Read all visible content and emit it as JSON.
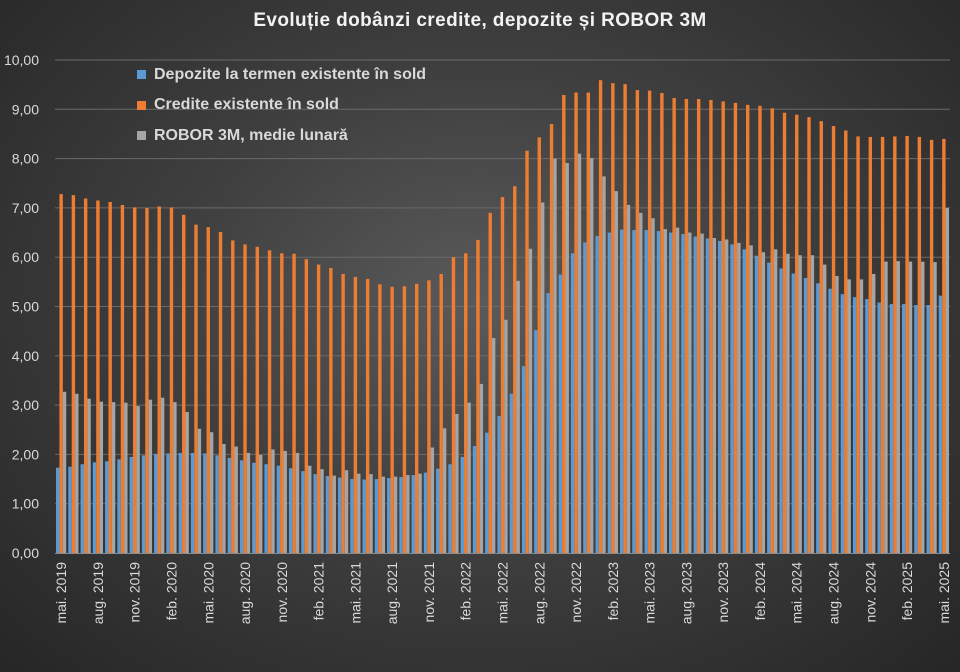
{
  "chart_data": {
    "type": "bar",
    "title": "Evoluție dobânzi credite, depozite și ROBOR 3M",
    "xlabel": "",
    "ylabel": "",
    "ylim": [
      0,
      10
    ],
    "y_ticks": [
      "0,00",
      "1,00",
      "2,00",
      "3,00",
      "4,00",
      "5,00",
      "6,00",
      "7,00",
      "8,00",
      "9,00",
      "10,00"
    ],
    "grid": true,
    "legend_position": "top-left",
    "categories": [
      "mai. 2019",
      "iun. 2019",
      "iul. 2019",
      "aug. 2019",
      "sep. 2019",
      "oct. 2019",
      "nov. 2019",
      "dec. 2019",
      "ian. 2020",
      "feb. 2020",
      "mar. 2020",
      "apr. 2020",
      "mai. 2020",
      "iun. 2020",
      "iul. 2020",
      "aug. 2020",
      "sep. 2020",
      "oct. 2020",
      "nov. 2020",
      "dec. 2020",
      "ian. 2021",
      "feb. 2021",
      "mar. 2021",
      "apr. 2021",
      "mai. 2021",
      "iun. 2021",
      "iul. 2021",
      "aug. 2021",
      "sep. 2021",
      "oct. 2021",
      "nov. 2021",
      "dec. 2021",
      "ian. 2022",
      "feb. 2022",
      "mar. 2022",
      "apr. 2022",
      "mai. 2022",
      "iun. 2022",
      "iul. 2022",
      "aug. 2022",
      "sep. 2022",
      "oct. 2022",
      "nov. 2022",
      "dec. 2022",
      "ian. 2023",
      "feb. 2023",
      "mar. 2023",
      "apr. 2023",
      "mai. 2023",
      "iun. 2023",
      "iul. 2023",
      "aug. 2023",
      "sep. 2023",
      "oct. 2023",
      "nov. 2023",
      "dec. 2023",
      "ian. 2024",
      "feb. 2024",
      "mar. 2024",
      "apr. 2024",
      "mai. 2024",
      "iun. 2024",
      "iul. 2024",
      "aug. 2024",
      "sep. 2024",
      "oct. 2024",
      "nov. 2024",
      "dec. 2024",
      "ian. 2025",
      "feb. 2025",
      "mar. 2025",
      "apr. 2025",
      "mai. 2025"
    ],
    "x_tick_labels": [
      {
        "index": 0,
        "label": "mai. 2019"
      },
      {
        "index": 3,
        "label": "aug. 2019"
      },
      {
        "index": 6,
        "label": "nov. 2019"
      },
      {
        "index": 9,
        "label": "feb. 2020"
      },
      {
        "index": 12,
        "label": "mai. 2020"
      },
      {
        "index": 15,
        "label": "aug. 2020"
      },
      {
        "index": 18,
        "label": "nov. 2020"
      },
      {
        "index": 21,
        "label": "feb. 2021"
      },
      {
        "index": 24,
        "label": "mai. 2021"
      },
      {
        "index": 27,
        "label": "aug. 2021"
      },
      {
        "index": 30,
        "label": "nov. 2021"
      },
      {
        "index": 33,
        "label": "feb. 2022"
      },
      {
        "index": 36,
        "label": "mai. 2022"
      },
      {
        "index": 39,
        "label": "aug. 2022"
      },
      {
        "index": 42,
        "label": "nov. 2022"
      },
      {
        "index": 45,
        "label": "feb. 2023"
      },
      {
        "index": 48,
        "label": "mai. 2023"
      },
      {
        "index": 51,
        "label": "aug. 2023"
      },
      {
        "index": 54,
        "label": "nov. 2023"
      },
      {
        "index": 57,
        "label": "feb. 2024"
      },
      {
        "index": 60,
        "label": "mai. 2024"
      },
      {
        "index": 63,
        "label": "aug. 2024"
      },
      {
        "index": 66,
        "label": "nov. 2024"
      },
      {
        "index": 69,
        "label": "feb. 2025"
      },
      {
        "index": 72,
        "label": "mai. 2025"
      }
    ],
    "series": [
      {
        "name": "Depozite la termen existente în sold",
        "color": "#5b9bd5",
        "values": [
          1.73,
          1.75,
          1.8,
          1.84,
          1.86,
          1.9,
          1.95,
          1.98,
          2.01,
          2.02,
          2.03,
          2.03,
          2.02,
          1.98,
          1.93,
          1.88,
          1.83,
          1.8,
          1.77,
          1.72,
          1.66,
          1.6,
          1.56,
          1.53,
          1.5,
          1.49,
          1.5,
          1.52,
          1.54,
          1.58,
          1.63,
          1.71,
          1.8,
          1.95,
          2.17,
          2.44,
          2.78,
          3.23,
          3.79,
          4.52,
          5.27,
          5.65,
          6.08,
          6.3,
          6.43,
          6.5,
          6.56,
          6.55,
          6.55,
          6.53,
          6.5,
          6.47,
          6.42,
          6.38,
          6.33,
          6.26,
          6.16,
          6.03,
          5.89,
          5.77,
          5.67,
          5.58,
          5.47,
          5.36,
          5.25,
          5.19,
          5.15,
          5.08,
          5.05,
          5.05,
          5.03,
          5.03,
          5.22
        ]
      },
      {
        "name": "Credite existente în sold",
        "color": "#ed7d31",
        "values": [
          7.28,
          7.26,
          7.19,
          7.15,
          7.12,
          7.06,
          7.01,
          7.0,
          7.03,
          7.01,
          6.86,
          6.66,
          6.61,
          6.51,
          6.34,
          6.26,
          6.21,
          6.14,
          6.08,
          6.07,
          5.96,
          5.85,
          5.78,
          5.66,
          5.6,
          5.56,
          5.45,
          5.4,
          5.41,
          5.46,
          5.53,
          5.66,
          6.0,
          6.08,
          6.35,
          6.9,
          7.22,
          7.44,
          8.16,
          8.43,
          8.7,
          9.29,
          9.34,
          9.34,
          9.59,
          9.53,
          9.51,
          9.39,
          9.38,
          9.33,
          9.23,
          9.21,
          9.21,
          9.19,
          9.16,
          9.13,
          9.09,
          9.07,
          9.02,
          8.93,
          8.89,
          8.84,
          8.76,
          8.66,
          8.57,
          8.45,
          8.44,
          8.44,
          8.45,
          8.46,
          8.44,
          8.38,
          8.4
        ]
      },
      {
        "name": "ROBOR 3M, medie lunară",
        "color": "#a5a5a5",
        "values": [
          3.27,
          3.23,
          3.13,
          3.07,
          3.06,
          3.05,
          2.98,
          3.11,
          3.15,
          3.06,
          2.86,
          2.52,
          2.45,
          2.21,
          2.16,
          2.03,
          1.99,
          2.1,
          2.07,
          2.03,
          1.77,
          1.7,
          1.57,
          1.68,
          1.61,
          1.6,
          1.55,
          1.55,
          1.58,
          1.61,
          2.14,
          2.53,
          2.82,
          3.05,
          3.43,
          4.36,
          4.73,
          5.52,
          6.17,
          7.11,
          8.0,
          7.91,
          8.1,
          8.01,
          7.64,
          7.34,
          7.06,
          6.9,
          6.79,
          6.57,
          6.6,
          6.5,
          6.48,
          6.39,
          6.36,
          6.29,
          6.24,
          6.1,
          6.16,
          6.07,
          6.04,
          6.04,
          5.85,
          5.62,
          5.55,
          5.55,
          5.66,
          5.91,
          5.92,
          5.91,
          5.91,
          5.9,
          7.0
        ]
      }
    ]
  }
}
